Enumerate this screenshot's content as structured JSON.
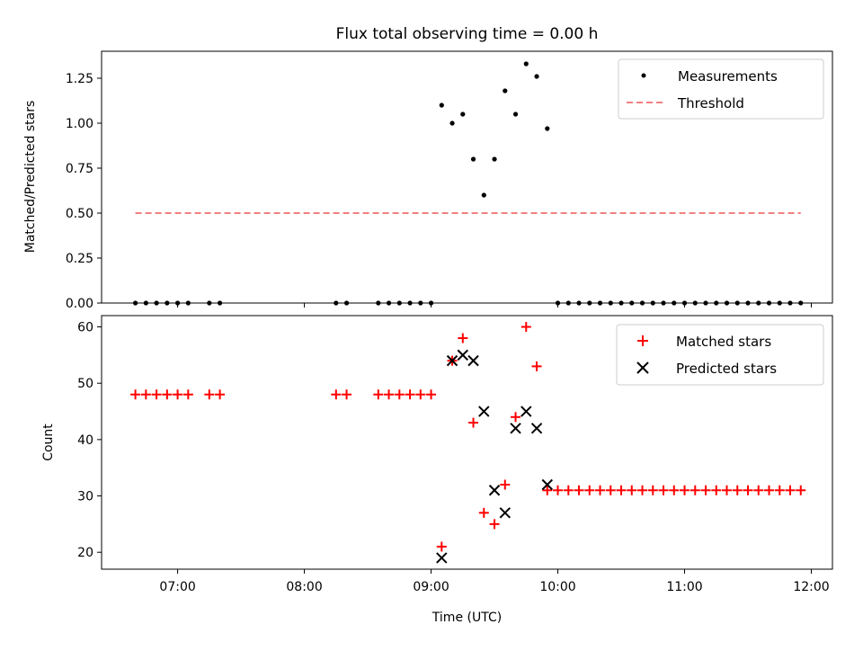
{
  "chart_data": [
    {
      "type": "scatter",
      "title": "Flux total observing time = 0.00 h",
      "ylabel": "Matched/Predicted stars",
      "xlabel": "",
      "xlim": [
        "06:24",
        "12:10"
      ],
      "ylim": [
        0,
        1.4
      ],
      "yticks": [
        "0.00",
        "0.25",
        "0.50",
        "0.75",
        "1.00",
        "1.25"
      ],
      "yticks_values": [
        0,
        0.25,
        0.5,
        0.75,
        1.0,
        1.25
      ],
      "xticks_values": [
        "07:00",
        "08:00",
        "09:00",
        "10:00",
        "11:00",
        "12:00"
      ],
      "legend_position": "top-right",
      "colors": {
        "measurements": "#000000",
        "threshold": "#f08080"
      },
      "series": [
        {
          "name": "Measurements",
          "kind": "points",
          "x": [
            "06:40",
            "06:45",
            "06:50",
            "06:55",
            "07:00",
            "07:05",
            "07:15",
            "07:20",
            "08:15",
            "08:20",
            "08:35",
            "08:40",
            "08:45",
            "08:50",
            "08:55",
            "09:00",
            "09:05",
            "09:10",
            "09:15",
            "09:20",
            "09:25",
            "09:30",
            "09:35",
            "09:40",
            "09:45",
            "09:50",
            "09:55",
            "10:00",
            "10:05",
            "10:10",
            "10:15",
            "10:20",
            "10:25",
            "10:30",
            "10:35",
            "10:40",
            "10:45",
            "10:50",
            "10:55",
            "11:00",
            "11:05",
            "11:10",
            "11:15",
            "11:20",
            "11:25",
            "11:30",
            "11:35",
            "11:40",
            "11:45",
            "11:50",
            "11:55"
          ],
          "y": [
            0,
            0,
            0,
            0,
            0,
            0,
            0,
            0,
            0,
            0,
            0,
            0,
            0,
            0,
            0,
            0,
            1.1,
            1.0,
            1.05,
            0.8,
            0.6,
            0.8,
            1.18,
            1.05,
            1.33,
            1.26,
            0.97,
            0,
            0,
            0,
            0,
            0,
            0,
            0,
            0,
            0,
            0,
            0,
            0,
            0,
            0,
            0,
            0,
            0,
            0,
            0,
            0,
            0,
            0,
            0,
            0
          ]
        },
        {
          "name": "Threshold",
          "kind": "dashed-line",
          "x": [
            "06:40",
            "11:55"
          ],
          "y": [
            0.5,
            0.5
          ]
        }
      ]
    },
    {
      "type": "scatter",
      "title": "",
      "xlabel": "Time (UTC)",
      "ylabel": "Count",
      "xlim": [
        "06:24",
        "12:10"
      ],
      "ylim": [
        17,
        62
      ],
      "yticks": [
        "20",
        "30",
        "40",
        "50",
        "60"
      ],
      "yticks_values": [
        20,
        30,
        40,
        50,
        60
      ],
      "xticks": [
        "07:00",
        "08:00",
        "09:00",
        "10:00",
        "11:00",
        "12:00"
      ],
      "legend_position": "top-right",
      "colors": {
        "matched": "#ff0000",
        "predicted": "#000000"
      },
      "series": [
        {
          "name": "Matched stars",
          "marker": "plus",
          "x": [
            "06:40",
            "06:45",
            "06:50",
            "06:55",
            "07:00",
            "07:05",
            "07:15",
            "07:20",
            "08:15",
            "08:20",
            "08:35",
            "08:40",
            "08:45",
            "08:50",
            "08:55",
            "09:00",
            "09:05",
            "09:10",
            "09:15",
            "09:20",
            "09:25",
            "09:30",
            "09:35",
            "09:40",
            "09:45",
            "09:50",
            "09:55",
            "10:00",
            "10:05",
            "10:10",
            "10:15",
            "10:20",
            "10:25",
            "10:30",
            "10:35",
            "10:40",
            "10:45",
            "10:50",
            "10:55",
            "11:00",
            "11:05",
            "11:10",
            "11:15",
            "11:20",
            "11:25",
            "11:30",
            "11:35",
            "11:40",
            "11:45",
            "11:50",
            "11:55"
          ],
          "y": [
            48,
            48,
            48,
            48,
            48,
            48,
            48,
            48,
            48,
            48,
            48,
            48,
            48,
            48,
            48,
            48,
            21,
            54,
            58,
            43,
            27,
            25,
            32,
            44,
            60,
            53,
            31,
            31,
            31,
            31,
            31,
            31,
            31,
            31,
            31,
            31,
            31,
            31,
            31,
            31,
            31,
            31,
            31,
            31,
            31,
            31,
            31,
            31,
            31,
            31,
            31
          ]
        },
        {
          "name": "Predicted stars",
          "marker": "x",
          "x": [
            "09:05",
            "09:10",
            "09:15",
            "09:20",
            "09:25",
            "09:30",
            "09:35",
            "09:40",
            "09:45",
            "09:50",
            "09:55"
          ],
          "y": [
            19,
            54,
            55,
            54,
            45,
            31,
            27,
            42,
            45,
            42,
            32
          ]
        }
      ]
    }
  ]
}
